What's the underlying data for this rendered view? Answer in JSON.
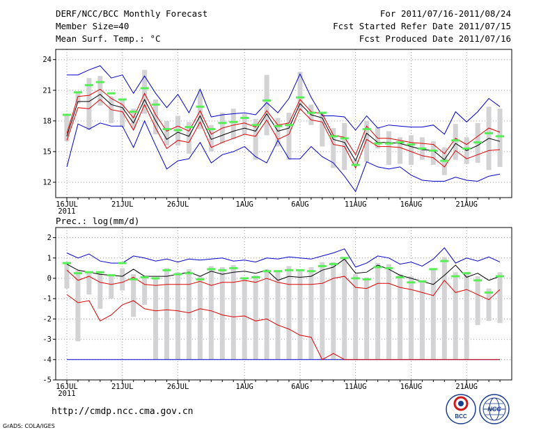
{
  "header": {
    "title": "DERF/NCC/BCC Monthly Forecast",
    "member_size": "Member Size=40",
    "variable": "Mean Surf. Temp.: °C",
    "period": "For 2011/07/16-2011/08/24",
    "refer_date": "Fcst Started Refer Date 2011/07/15",
    "produced_date": "Fcst Produced Date 2011/07/16"
  },
  "footer": {
    "url": "http://cmdp.ncc.cma.gov.cn",
    "credit": "GrADS: COLA/IGES",
    "logo_left_text": "BCC",
    "logo_right_text": "NCC"
  },
  "colors": {
    "box": "#d3d3d6",
    "median": "#55ee55",
    "max_min": "#0000cc",
    "percentile": "#dd0000",
    "mean": "#000000",
    "grid": "#9a9a9a"
  },
  "chart_data": [
    {
      "type": "box",
      "title": "Mean Surf. Temp.: °C",
      "x_tick_labels": [
        "16JUL",
        "21JUL",
        "26JUL",
        "1AUG",
        "6AUG",
        "11AUG",
        "16AUG",
        "21AUG"
      ],
      "x_tick_day_index": [
        0,
        5,
        10,
        16,
        21,
        26,
        31,
        36
      ],
      "year_label": "2011",
      "ylim": [
        10.5,
        25
      ],
      "y_ticks": [
        12,
        15,
        18,
        21,
        24
      ],
      "grid": true,
      "series": {
        "max": [
          22.5,
          22.5,
          23,
          23.4,
          22.2,
          22.5,
          20.7,
          22.4,
          20.7,
          19.3,
          20.6,
          18.8,
          21.1,
          18.4,
          18.6,
          18.7,
          18.8,
          18.6,
          19.8,
          18.8,
          20.2,
          22.6,
          20.3,
          18.5,
          18.5,
          18.4,
          17.1,
          18.5,
          17.3,
          17.6,
          17.5,
          17.4,
          17.4,
          17.6,
          16.7,
          18.9,
          17.9,
          18.9,
          20.2,
          19.4
        ],
        "min": [
          13.5,
          17.7,
          17.2,
          17.8,
          17.5,
          17.5,
          15.4,
          18,
          15.6,
          13.3,
          14.1,
          14.3,
          15.9,
          13.9,
          14.7,
          15,
          15.5,
          14.5,
          13.9,
          16.1,
          14.3,
          14.3,
          15.5,
          14.5,
          13.9,
          12.6,
          11.1,
          14,
          13.5,
          13.3,
          13.5,
          12.7,
          12.2,
          12.1,
          12.1,
          12.5,
          12.2,
          12.1,
          12.6,
          12.8
        ],
        "p75": [
          16.8,
          20.4,
          20.5,
          21.1,
          20.2,
          19.6,
          18.3,
          20.7,
          18.6,
          17,
          17.5,
          17,
          19,
          16.7,
          17.3,
          17.6,
          17.8,
          17.4,
          19,
          17.6,
          17.8,
          20.1,
          18.9,
          18.7,
          16.6,
          16.4,
          14.7,
          17.5,
          16.3,
          16.3,
          16.1,
          15.9,
          15.8,
          15.7,
          14.8,
          16.3,
          15.7,
          16.5,
          17.3,
          16.9
        ],
        "p25": [
          16.1,
          19.3,
          19.2,
          20.1,
          19.1,
          18.9,
          17.1,
          19.6,
          17.3,
          15.3,
          16.1,
          15.9,
          17.9,
          15.4,
          15.9,
          16.3,
          16.7,
          16.5,
          18.1,
          16.2,
          16.7,
          19.2,
          18.1,
          17.9,
          15.7,
          15.5,
          13.4,
          16.2,
          15.5,
          15.5,
          15.4,
          15,
          14.6,
          14.4,
          13.5,
          15.1,
          14.3,
          14.7,
          15.1,
          15.2
        ],
        "mean": [
          16.5,
          19.9,
          19.9,
          20.6,
          19.6,
          19.3,
          17.8,
          20.1,
          18,
          16.2,
          16.9,
          16.5,
          18.5,
          16.2,
          16.6,
          17,
          17.3,
          17,
          18.7,
          17,
          17.3,
          19.7,
          18.6,
          18.3,
          16.2,
          15.9,
          14.1,
          16.8,
          15.9,
          15.9,
          15.8,
          15.5,
          15.2,
          15.1,
          14.2,
          15.8,
          15.1,
          15.6,
          16.3,
          16
        ],
        "median": [
          18.6,
          20.8,
          21.5,
          21.8,
          20.7,
          20.1,
          18.9,
          21.2,
          19.6,
          17.2,
          17.1,
          17.4,
          19.4,
          17.2,
          17.8,
          17.9,
          18.3,
          17.6,
          20,
          17.5,
          17.6,
          20.3,
          18.8,
          18.8,
          16.5,
          16.3,
          13.7,
          17.2,
          15.8,
          15.8,
          15.9,
          15.7,
          15.3,
          15.1,
          14.1,
          16.1,
          15.3,
          15.9,
          16.8,
          16.5
        ],
        "box_high": [
          18.6,
          20.9,
          22.2,
          22.4,
          20.4,
          20.1,
          19.2,
          23,
          20.1,
          18,
          18.5,
          17.9,
          20.9,
          17.6,
          18.8,
          19.2,
          18.7,
          18.2,
          22.5,
          18.3,
          18.8,
          22.8,
          19.6,
          18.7,
          17.3,
          17.8,
          14.2,
          18,
          17.4,
          17,
          16.4,
          16.6,
          16.4,
          16,
          15.4,
          17.7,
          16.4,
          17.8,
          19.4,
          19.2
        ],
        "box_low": [
          16,
          19.7,
          17.1,
          19.5,
          17.8,
          17.4,
          17.3,
          18.7,
          16.7,
          15.6,
          15.6,
          14.8,
          17.2,
          15,
          15.8,
          16.2,
          16.7,
          14.2,
          16.6,
          15.5,
          14.2,
          19,
          17.6,
          15.5,
          13.4,
          13.2,
          13.6,
          14,
          15.3,
          13.7,
          13.8,
          13.7,
          14.2,
          13.7,
          12.7,
          14.2,
          13.8,
          13.9,
          13.2,
          13.5
        ]
      }
    },
    {
      "type": "box",
      "title": "Prec.: log(mm/d)",
      "x_tick_labels": [
        "16JUL",
        "21JUL",
        "26JUL",
        "1AUG",
        "6AUG",
        "11AUG",
        "16AUG",
        "21AUG"
      ],
      "x_tick_day_index": [
        0,
        5,
        10,
        16,
        21,
        26,
        31,
        36
      ],
      "year_label": "2011",
      "ylim": [
        -5,
        2.5
      ],
      "y_ticks": [
        -5,
        -4,
        -3,
        -2,
        -1,
        0,
        1,
        2
      ],
      "grid": true,
      "series": {
        "max": [
          1.25,
          1,
          1.2,
          0.85,
          0.75,
          0.75,
          1.1,
          1,
          0.85,
          0.95,
          0.8,
          0.95,
          0.9,
          0.95,
          1,
          0.85,
          0.9,
          0.8,
          1,
          0.95,
          1.05,
          1,
          0.95,
          1.1,
          1.25,
          1.45,
          0.55,
          0.75,
          1.1,
          1,
          0.7,
          0.8,
          0.6,
          0.95,
          1.5,
          0.75,
          1,
          0.85,
          1.05,
          0.8
        ],
        "min": [
          -4,
          -4,
          -4,
          -4,
          -4,
          -4,
          -4,
          -4,
          -4,
          -4,
          -4,
          -4,
          -4,
          -4,
          -4,
          -4,
          -4,
          -4,
          -4,
          -4,
          -4,
          -4,
          -4,
          -4,
          -4,
          -4,
          -4,
          -4,
          -4,
          -4,
          -4,
          -4,
          -4,
          -4,
          -4,
          -4,
          -4,
          -4,
          -4,
          -4
        ],
        "p75": [
          0.4,
          -0.1,
          0.1,
          -0.2,
          -0.3,
          -0.2,
          0.05,
          -0.3,
          -0.35,
          -0.3,
          -0.3,
          -0.3,
          -0.15,
          -0.35,
          -0.2,
          -0.2,
          -0.1,
          -0.2,
          0,
          -0.2,
          -0.3,
          -0.3,
          -0.3,
          -0.25,
          0,
          0.1,
          -0.45,
          -0.5,
          -0.25,
          -0.25,
          -0.45,
          -0.55,
          -0.7,
          -0.85,
          -0.1,
          -0.7,
          -0.55,
          -0.8,
          -1.05,
          -0.55
        ],
        "p25": [
          -0.8,
          -1.2,
          -1.1,
          -2.1,
          -1.8,
          -1.3,
          -1.1,
          -1.5,
          -1.6,
          -1.55,
          -1.6,
          -1.7,
          -1.5,
          -1.6,
          -1.8,
          -1.9,
          -1.85,
          -2.1,
          -2,
          -2.3,
          -2.5,
          -2.8,
          -2.9,
          -4,
          -3.7,
          -4,
          -4,
          -4,
          -4,
          -4,
          -4,
          -4,
          -4,
          -4,
          -4,
          -4,
          -4,
          -4,
          -4,
          -4
        ],
        "mean": [
          0.7,
          0.4,
          0.3,
          0.2,
          0.15,
          0.1,
          0.45,
          0.1,
          0.1,
          0.1,
          0.2,
          0.3,
          0.1,
          0.35,
          0.2,
          0.3,
          0.35,
          0.25,
          0.4,
          -0.1,
          0.1,
          0.05,
          0.1,
          0.4,
          0.55,
          0.95,
          0.25,
          0.3,
          0.65,
          0.45,
          0.15,
          0,
          -0.15,
          -0.3,
          0.15,
          0.65,
          0.05,
          0.25,
          -0.1,
          0.1
        ],
        "median": [
          0.75,
          0.25,
          0.3,
          0.3,
          0.15,
          0.75,
          -0.05,
          0.05,
          0,
          0.4,
          0.2,
          0.25,
          -0.05,
          0.45,
          0.4,
          0.5,
          0,
          0.05,
          0.35,
          0.35,
          0.4,
          0.4,
          0.35,
          0.6,
          0.7,
          1,
          0,
          -0.05,
          0.55,
          0.5,
          0.05,
          -0.2,
          -0.15,
          0.45,
          0.85,
          0.1,
          0.25,
          -0.1,
          -0.7,
          0.1
        ],
        "box_high": [
          0.8,
          0.4,
          0.3,
          0.35,
          0.2,
          0.5,
          0.2,
          0.1,
          0.05,
          0.5,
          0.3,
          0.45,
          0.1,
          0.6,
          0.55,
          0.65,
          0.05,
          0.15,
          0.45,
          0.4,
          0.6,
          0.4,
          0.55,
          0.8,
          0.8,
          0.95,
          0.2,
          0.05,
          0.75,
          0.7,
          0.2,
          0.1,
          -0.1,
          0.45,
          1.05,
          0.3,
          0.3,
          0.1,
          -0.5,
          0.3
        ],
        "box_low": [
          -0.5,
          -3.1,
          -0.8,
          -1.5,
          -1,
          -0.6,
          -1.9,
          -1.3,
          -4,
          -4,
          -4,
          -4,
          -4,
          -4,
          -4,
          -4,
          -4,
          -4,
          -4,
          -4,
          -4,
          -4,
          -4,
          -4,
          -4,
          -4,
          -4,
          -4,
          -4,
          -4,
          -4,
          -4,
          -4,
          -4,
          -4,
          -4,
          -4,
          -2.3,
          -2.1,
          -2.2
        ]
      }
    }
  ]
}
